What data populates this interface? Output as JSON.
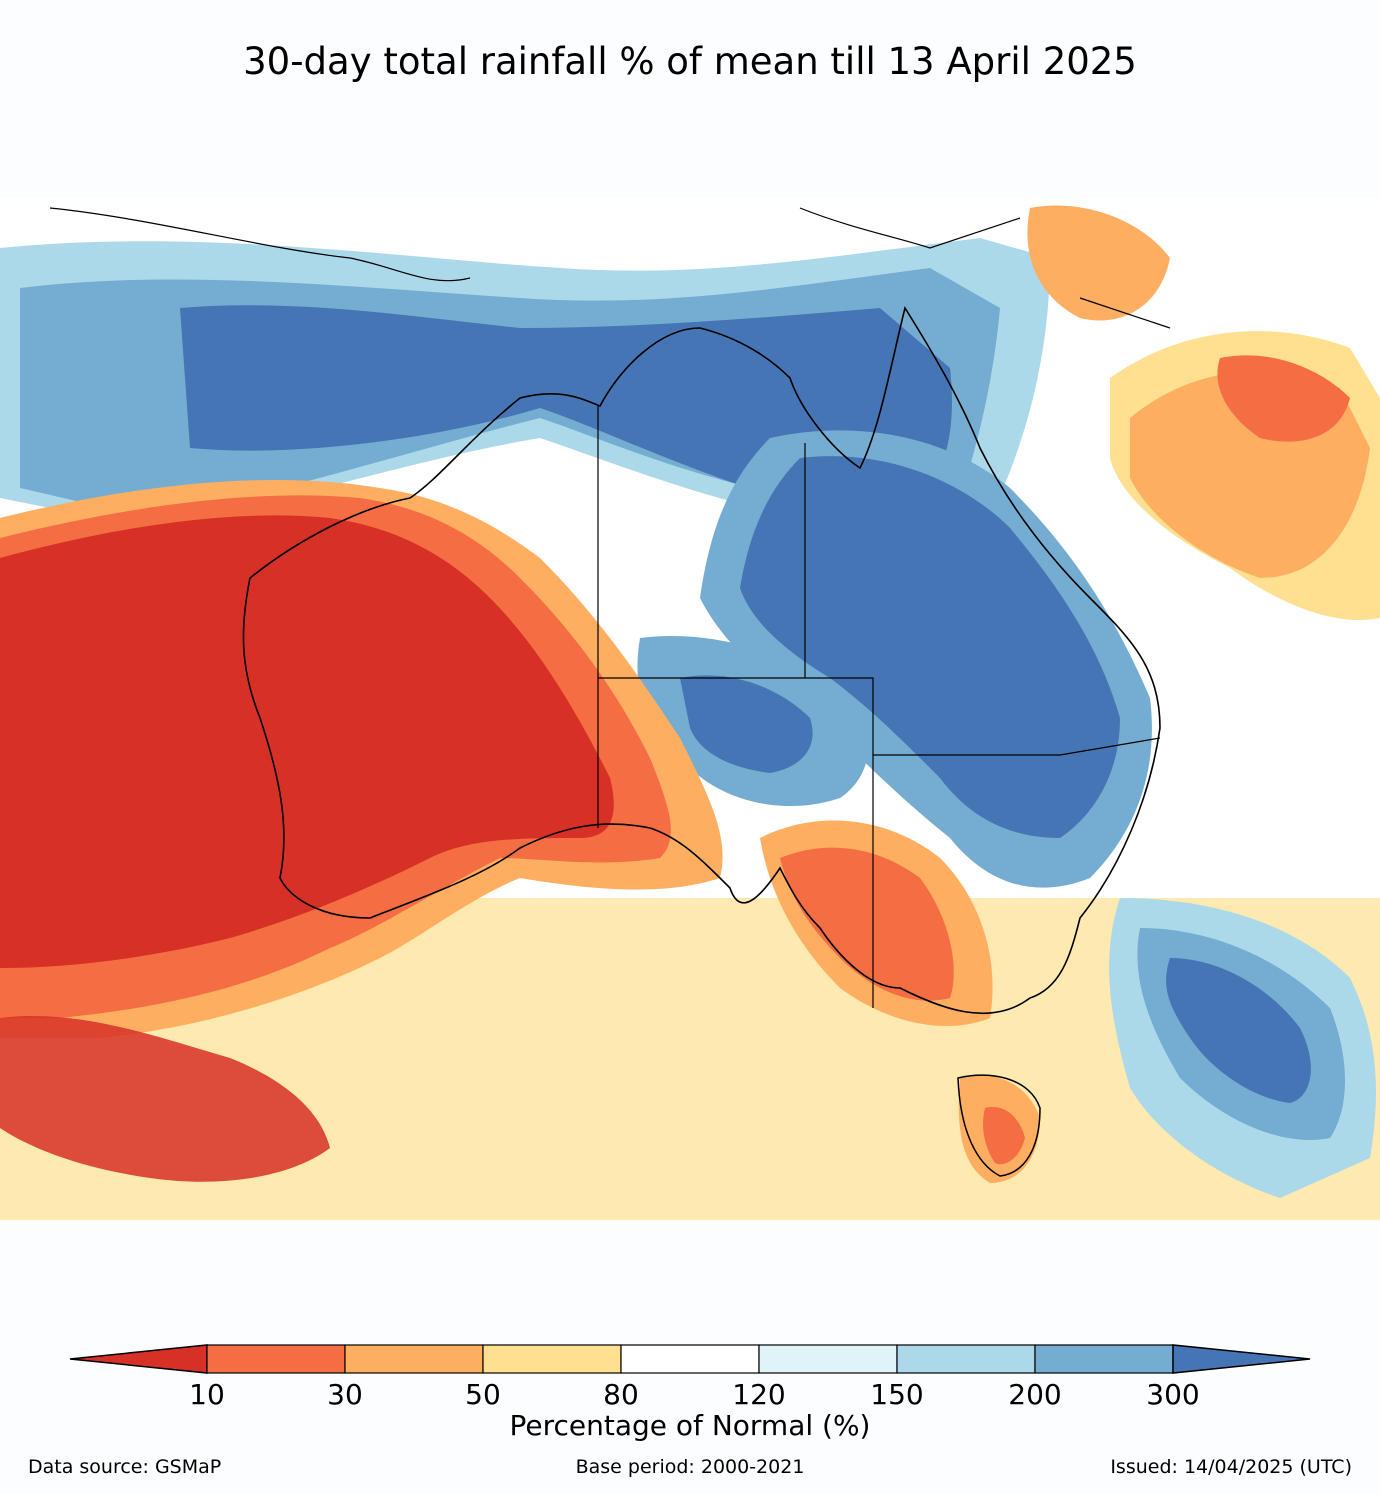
{
  "title": "30-day total rainfall % of mean till 13 April 2025",
  "colorbar": {
    "label": "Percentage of Normal (%)",
    "ticks": [
      "10",
      "30",
      "50",
      "80",
      "120",
      "150",
      "200",
      "300"
    ],
    "bins": [
      {
        "range": "<10",
        "color": "#d73027"
      },
      {
        "range": "10-30",
        "color": "#f46d43"
      },
      {
        "range": "30-50",
        "color": "#fdae61"
      },
      {
        "range": "50-80",
        "color": "#fee090"
      },
      {
        "range": "80-120",
        "color": "#ffffff"
      },
      {
        "range": "120-150",
        "color": "#e0f3f8"
      },
      {
        "range": "150-200",
        "color": "#abd9e9"
      },
      {
        "range": "200-300",
        "color": "#74add1"
      },
      {
        "range": ">300",
        "color": "#4575b4"
      }
    ]
  },
  "footer": {
    "data_source": "Data source: GSMaP",
    "base_period": "Base period: 2000-2021",
    "issued": "Issued: 14/04/2025 (UTC)"
  }
}
